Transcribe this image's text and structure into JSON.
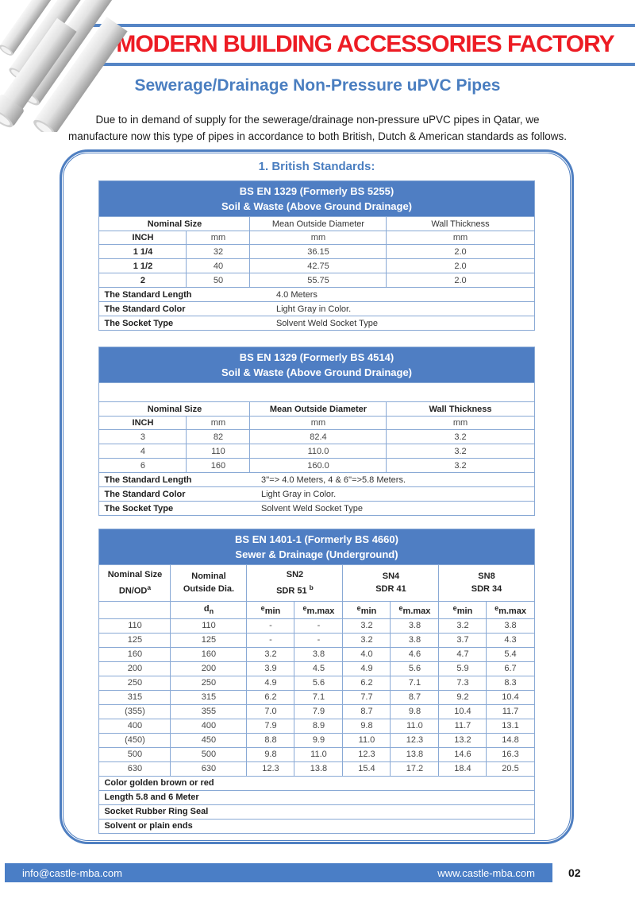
{
  "colors": {
    "accent_blue": "#4a7ec0",
    "table_header_bg": "#4f7ec3",
    "table_border": "#89a9d5",
    "title_red": "#ed1c24",
    "footer_bar_bg": "#4a7ec6"
  },
  "header": {
    "factory_name": "MODERN BUILDING ACCESSORIES FACTORY",
    "subtitle": "Sewerage/Drainage Non-Pressure uPVC Pipes",
    "intro_line1": "Due to in demand of supply for the sewerage/drainage non-pressure uPVC pipes in Qatar, we",
    "intro_line2": "manufacture now this type of pipes in accordance to both British, Dutch & American standards as follows."
  },
  "section_title": "1. British Standards:",
  "table1": {
    "title_line1": "BS EN 1329 (Formerly BS 5255)",
    "title_line2": "Soil & Waste (Above Ground Drainage)",
    "group_headers": [
      "Nominal Size",
      "Mean Outside Diameter",
      "Wall Thickness"
    ],
    "unit_headers": [
      "INCH",
      "mm",
      "mm",
      "mm"
    ],
    "rows": [
      [
        "1 1/4",
        "32",
        "36.15",
        "2.0"
      ],
      [
        "1 1/2",
        "40",
        "42.75",
        "2.0"
      ],
      [
        "2",
        "50",
        "55.75",
        "2.0"
      ]
    ],
    "footer_rows": [
      {
        "label": "The Standard Length",
        "value": "4.0 Meters"
      },
      {
        "label": "The Standard Color",
        "value": "Light Gray in Color."
      },
      {
        "label": "The Socket Type",
        "value": "Solvent Weld Socket Type"
      }
    ]
  },
  "table2": {
    "title_line1": "BS EN 1329 (Formerly BS 4514)",
    "title_line2": "Soil & Waste (Above Ground Drainage)",
    "group_headers": [
      "Nominal Size",
      "Mean Outside Diameter",
      "Wall Thickness"
    ],
    "unit_headers": [
      "INCH",
      "mm",
      "mm",
      "mm"
    ],
    "rows": [
      [
        "3",
        "82",
        "82.4",
        "3.2"
      ],
      [
        "4",
        "110",
        "110.0",
        "3.2"
      ],
      [
        "6",
        "160",
        "160.0",
        "3.2"
      ]
    ],
    "footer_rows": [
      {
        "label": "The Standard Length",
        "value": "3''=> 4.0 Meters, 4 & 6''=>5.8 Meters."
      },
      {
        "label": "The Standard Color",
        "value": "Light Gray in Color."
      },
      {
        "label": "The Socket Type",
        "value": "Solvent Weld Socket Type"
      }
    ]
  },
  "table3": {
    "title_line1": "BS EN 1401-1 (Formerly BS 4660)",
    "title_line2": "Sewer & Drainage (Underground)",
    "col1_line1": "Nominal Size",
    "col1_line2": "DN/OD",
    "col1_sup": "a",
    "col2_line1": "Nominal",
    "col2_line2": "Outside Dia.",
    "groups": [
      {
        "line1": "SN2",
        "line2": "SDR 51",
        "sup": "b"
      },
      {
        "line1": "SN4",
        "line2": "SDR 41",
        "sup": ""
      },
      {
        "line1": "SN8",
        "line2": "SDR 34",
        "sup": ""
      }
    ],
    "sub": {
      "d": "d",
      "d_sub": "n",
      "e": "e",
      "min": "min",
      "mmax": "m.max"
    },
    "rows": [
      [
        "110",
        "110",
        "-",
        "-",
        "3.2",
        "3.8",
        "3.2",
        "3.8"
      ],
      [
        "125",
        "125",
        "-",
        "-",
        "3.2",
        "3.8",
        "3.7",
        "4.3"
      ],
      [
        "160",
        "160",
        "3.2",
        "3.8",
        "4.0",
        "4.6",
        "4.7",
        "5.4"
      ],
      [
        "200",
        "200",
        "3.9",
        "4.5",
        "4.9",
        "5.6",
        "5.9",
        "6.7"
      ],
      [
        "250",
        "250",
        "4.9",
        "5.6",
        "6.2",
        "7.1",
        "7.3",
        "8.3"
      ],
      [
        "315",
        "315",
        "6.2",
        "7.1",
        "7.7",
        "8.7",
        "9.2",
        "10.4"
      ],
      [
        "(355)",
        "355",
        "7.0",
        "7.9",
        "8.7",
        "9.8",
        "10.4",
        "11.7"
      ],
      [
        "400",
        "400",
        "7.9",
        "8.9",
        "9.8",
        "11.0",
        "11.7",
        "13.1"
      ],
      [
        "(450)",
        "450",
        "8.8",
        "9.9",
        "11.0",
        "12.3",
        "13.2",
        "14.8"
      ],
      [
        "500",
        "500",
        "9.8",
        "11.0",
        "12.3",
        "13.8",
        "14.6",
        "16.3"
      ],
      [
        "630",
        "630",
        "12.3",
        "13.8",
        "15.4",
        "17.2",
        "18.4",
        "20.5"
      ]
    ],
    "footer_rows": [
      "Color golden brown or red",
      "Length 5.8 and 6 Meter",
      "Socket Rubber Ring Seal",
      "Solvent or plain ends"
    ]
  },
  "footer": {
    "email": "info@castle-mba.com",
    "website": "www.castle-mba.com",
    "page_number": "02"
  }
}
